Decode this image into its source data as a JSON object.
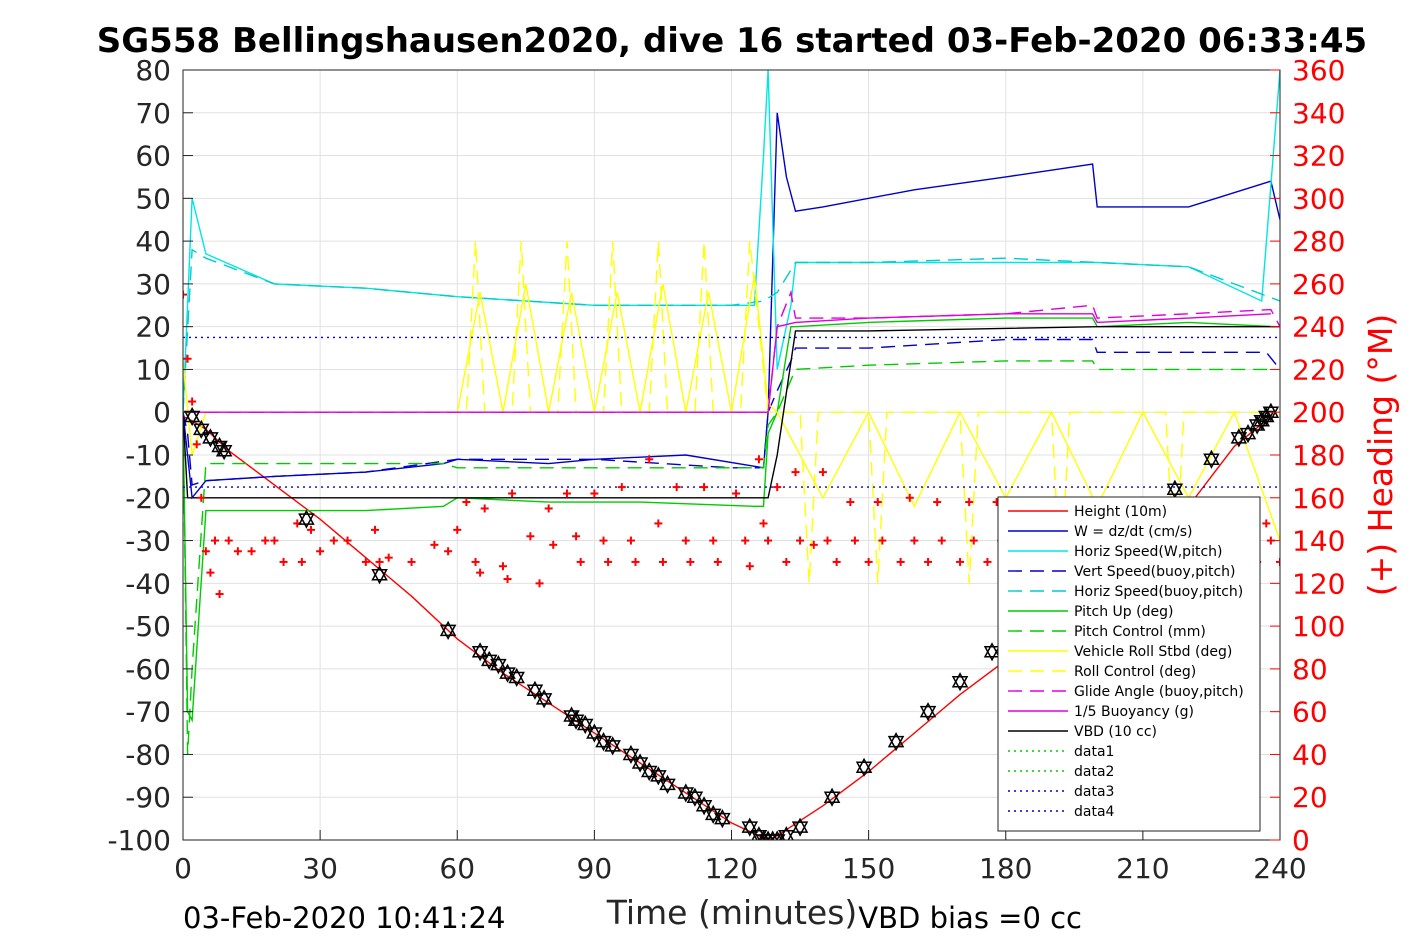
{
  "chart_data": {
    "type": "line",
    "title": "SG558 Bellingshausen2020, dive 16 started 03-Feb-2020 06:33:45",
    "xlabel": "Time (minutes)",
    "ylabel": "",
    "ylabel_right": "(+) Heading (°M)",
    "xlim": [
      0,
      240
    ],
    "ylim": [
      -100,
      80
    ],
    "ylim_right": [
      0,
      360
    ],
    "x_ticks": [
      "0",
      "30",
      "60",
      "90",
      "120",
      "150",
      "180",
      "210",
      "240"
    ],
    "y_ticks": [
      "-100",
      "-90",
      "-80",
      "-70",
      "-60",
      "-50",
      "-40",
      "-30",
      "-20",
      "-10",
      "0",
      "10",
      "20",
      "30",
      "40",
      "50",
      "60",
      "70",
      "80"
    ],
    "y_right_ticks": [
      "0",
      "20",
      "40",
      "60",
      "80",
      "100",
      "120",
      "140",
      "160",
      "180",
      "200",
      "220",
      "240",
      "260",
      "280",
      "300",
      "320",
      "340",
      "360"
    ],
    "grid": true,
    "legend_position": "lower-right",
    "footer_left": "03-Feb-2020 10:41:24",
    "footer_right": "VBD bias =0 cc",
    "series": [
      {
        "name": "Height (10m)",
        "color": "#ff0000",
        "dash": "solid",
        "x": [
          0,
          2,
          5,
          10,
          20,
          30,
          40,
          50,
          60,
          70,
          80,
          90,
          100,
          110,
          120,
          126,
          128,
          130,
          140,
          150,
          160,
          170,
          180,
          190,
          200,
          210,
          220,
          230,
          238
        ],
        "y": [
          -1,
          -2,
          -4,
          -9,
          -17,
          -25,
          -34,
          -43,
          -53,
          -61,
          -68,
          -75,
          -82,
          -89,
          -96,
          -99,
          -100,
          -99,
          -92,
          -84,
          -75,
          -66,
          -58,
          -49,
          -40,
          -31,
          -22,
          -8,
          -1
        ]
      },
      {
        "name": "W = dz/dt (cm/s)",
        "color": "#0000cc",
        "dash": "solid",
        "x": [
          0,
          2,
          5,
          20,
          40,
          57,
          60,
          80,
          90,
          110,
          127,
          128,
          130,
          132,
          134,
          140,
          160,
          180,
          199,
          200,
          220,
          238,
          240
        ],
        "y": [
          0,
          -20,
          -16,
          -15,
          -14,
          -12,
          -11,
          -12,
          -11,
          -10,
          -13,
          0,
          70,
          55,
          47,
          48,
          52,
          55,
          58,
          48,
          48,
          54,
          45
        ]
      },
      {
        "name": "Horiz Speed(W,pitch)",
        "color": "#00e5e5",
        "dash": "solid",
        "x": [
          0,
          2,
          5,
          20,
          40,
          60,
          90,
          125,
          127,
          128,
          130,
          133,
          134,
          150,
          180,
          200,
          220,
          236,
          240
        ],
        "y": [
          0,
          50,
          37,
          30,
          29,
          27,
          25,
          25,
          60,
          80,
          10,
          25,
          35,
          35,
          35,
          35,
          34,
          26,
          80
        ]
      },
      {
        "name": "Vert Speed(buoy,pitch)",
        "color": "#0000cc",
        "dash": "dashed",
        "x": [
          0,
          1,
          2,
          5,
          20,
          40,
          60,
          90,
          120,
          127,
          128,
          130,
          133,
          134,
          150,
          180,
          199,
          200,
          220,
          237,
          240
        ],
        "y": [
          0,
          -5,
          -17,
          -16,
          -15,
          -14,
          -11,
          -11,
          -13,
          -13,
          0,
          5,
          12,
          15,
          15,
          17,
          17,
          14,
          14,
          14,
          10
        ]
      },
      {
        "name": "Horiz Speed(buoy,pitch)",
        "color": "#00cccc",
        "dash": "dashed",
        "x": [
          0,
          2,
          5,
          20,
          40,
          60,
          90,
          120,
          127,
          130,
          134,
          150,
          180,
          200,
          220,
          240
        ],
        "y": [
          0,
          38,
          36,
          30,
          29,
          27,
          25,
          25,
          26,
          28,
          35,
          35,
          36,
          35,
          34,
          26
        ]
      },
      {
        "name": "Pitch Up (deg)",
        "color": "#00cc00",
        "dash": "solid",
        "x": [
          0,
          1,
          2,
          5,
          20,
          40,
          57,
          60,
          80,
          100,
          125,
          127,
          128,
          130,
          133,
          134,
          150,
          180,
          199,
          200,
          220,
          239
        ],
        "y": [
          0,
          -70,
          -72,
          -23,
          -23,
          -23,
          -22,
          -20,
          -21,
          -21,
          -22,
          -22,
          -5,
          0,
          20,
          20,
          21,
          22,
          22,
          20,
          21,
          20
        ]
      },
      {
        "name": "Pitch Control (mm)",
        "color": "#00cc00",
        "dash": "dashed",
        "x": [
          0,
          1,
          2,
          5,
          20,
          40,
          57,
          60,
          100,
          127,
          128,
          130,
          134,
          150,
          180,
          199,
          200,
          220,
          239
        ],
        "y": [
          0,
          -80,
          -60,
          -12,
          -12,
          -12,
          -12,
          -13,
          -13,
          -13,
          -3,
          0,
          10,
          11,
          12,
          12,
          10,
          10,
          10
        ]
      },
      {
        "name": "Vehicle Roll Stbd (deg)",
        "color": "#ffff00",
        "dash": "solid",
        "x": [
          0,
          2,
          5,
          60,
          65,
          70,
          75,
          80,
          85,
          90,
          95,
          100,
          105,
          110,
          115,
          120,
          125,
          128,
          130,
          140,
          150,
          160,
          170,
          180,
          190,
          200,
          210,
          220,
          230,
          240
        ],
        "y": [
          12,
          -10,
          0,
          0,
          28,
          0,
          30,
          0,
          28,
          0,
          28,
          0,
          30,
          0,
          28,
          0,
          32,
          2,
          0,
          -20,
          0,
          -22,
          0,
          -20,
          0,
          -22,
          0,
          -20,
          0,
          -30
        ]
      },
      {
        "name": "Roll Control (deg)",
        "color": "#ffff00",
        "dash": "dashed",
        "x": [
          0,
          5,
          62,
          64,
          66,
          72,
          74,
          76,
          82,
          84,
          86,
          92,
          94,
          96,
          102,
          104,
          106,
          112,
          114,
          116,
          122,
          124,
          128,
          135,
          137,
          139,
          150,
          152,
          154,
          170,
          172,
          174,
          190,
          192,
          194,
          215,
          217,
          219,
          236,
          240
        ],
        "y": [
          0,
          0,
          0,
          40,
          0,
          0,
          40,
          0,
          0,
          40,
          0,
          0,
          40,
          0,
          0,
          40,
          0,
          0,
          40,
          0,
          0,
          40,
          0,
          0,
          -40,
          0,
          0,
          -40,
          0,
          0,
          -40,
          0,
          0,
          -40,
          0,
          0,
          -40,
          0,
          0,
          0
        ]
      },
      {
        "name": "Glide Angle (buoy,pitch)",
        "color": "#dd00dd",
        "dash": "dashed",
        "x": [
          0,
          5,
          60,
          100,
          127,
          128,
          130,
          133,
          134,
          150,
          180,
          199,
          200,
          220,
          238,
          240
        ],
        "y": [
          0,
          0,
          0,
          0,
          0,
          0,
          20,
          28,
          22,
          22,
          23,
          25,
          22,
          23,
          24,
          20
        ]
      },
      {
        "name": "1/5 Buoyancy (g)",
        "color": "#dd00dd",
        "dash": "solid",
        "x": [
          0,
          5,
          60,
          127,
          128,
          130,
          134,
          150,
          180,
          199,
          200,
          220,
          238
        ],
        "y": [
          0,
          0,
          0,
          0,
          0,
          20,
          21,
          22,
          23,
          23,
          21,
          22,
          23
        ]
      },
      {
        "name": "VBD (10 cc)",
        "color": "#000000",
        "dash": "solid",
        "x": [
          0,
          1,
          2,
          5,
          60,
          127,
          128,
          130,
          134,
          150,
          200,
          240
        ],
        "y": [
          0,
          -20,
          -20,
          -20,
          -20,
          -20,
          -20,
          -10,
          19,
          19,
          20,
          20
        ]
      },
      {
        "name": "data1",
        "color": "#00cc00",
        "dash": "dotted",
        "x": [],
        "y": []
      },
      {
        "name": "data2",
        "color": "#00cc00",
        "dash": "dotted",
        "x": [],
        "y": []
      },
      {
        "name": "data3",
        "color": "#0000cc",
        "dash": "dotted",
        "x": [
          0,
          240
        ],
        "y": [
          17.5,
          17.5
        ]
      },
      {
        "name": "data4",
        "color": "#0000cc",
        "dash": "dotted",
        "x": [
          0,
          240
        ],
        "y": [
          -17.5,
          -17.5
        ]
      }
    ],
    "heading_points": {
      "color": "#ff0000",
      "marker": "+",
      "axis": "right",
      "x": [
        0,
        1,
        2,
        3,
        4,
        5,
        6,
        7,
        8,
        10,
        12,
        15,
        18,
        20,
        22,
        25,
        26,
        28,
        30,
        33,
        36,
        40,
        42,
        43,
        45,
        50,
        55,
        58,
        60,
        62,
        64,
        65,
        66,
        70,
        71,
        72,
        76,
        78,
        80,
        81,
        84,
        86,
        87,
        90,
        92,
        93,
        96,
        98,
        99,
        102,
        104,
        105,
        108,
        110,
        111,
        114,
        116,
        117,
        121,
        123,
        124,
        126,
        127,
        128,
        130,
        132,
        134,
        135,
        138,
        140,
        141,
        143,
        146,
        147,
        150,
        152,
        153,
        157,
        159,
        160,
        163,
        165,
        166,
        170,
        172,
        173,
        176,
        178,
        179,
        183,
        185,
        186,
        190,
        192,
        193,
        196,
        198,
        199,
        202,
        204,
        205,
        209,
        211,
        212,
        215,
        217,
        218,
        222,
        224,
        225,
        229,
        231,
        232,
        235,
        237,
        238,
        240
      ],
      "y": [
        255,
        225,
        205,
        185,
        160,
        135,
        125,
        140,
        115,
        140,
        135,
        135,
        140,
        140,
        130,
        148,
        130,
        145,
        135,
        140,
        140,
        130,
        145,
        130,
        132,
        130,
        138,
        135,
        145,
        158,
        130,
        125,
        155,
        128,
        122,
        162,
        142,
        120,
        155,
        138,
        162,
        142,
        130,
        162,
        140,
        130,
        165,
        140,
        130,
        178,
        148,
        130,
        165,
        140,
        130,
        165,
        140,
        130,
        162,
        140,
        128,
        178,
        148,
        140,
        165,
        130,
        172,
        140,
        138,
        172,
        140,
        130,
        158,
        140,
        130,
        158,
        140,
        130,
        160,
        140,
        130,
        158,
        140,
        130,
        158,
        140,
        130,
        158,
        140,
        130,
        158,
        140,
        130,
        158,
        140,
        130,
        158,
        140,
        130,
        158,
        140,
        130,
        158,
        140,
        130,
        158,
        140,
        130,
        158,
        140,
        130,
        158,
        140,
        130,
        148,
        140,
        130
      ]
    },
    "gps_points": {
      "marker": "triangle",
      "x": [
        2,
        4,
        6,
        8,
        9,
        27,
        43,
        58,
        65,
        67,
        69,
        71,
        73,
        77,
        79,
        85,
        86,
        88,
        90,
        92,
        94,
        98,
        100,
        102,
        104,
        106,
        110,
        112,
        114,
        116,
        118,
        124,
        126,
        127,
        128,
        129,
        130,
        132,
        135,
        142,
        149,
        156,
        163,
        170,
        177,
        217,
        225,
        231,
        233,
        235,
        236,
        237,
        238
      ],
      "y": [
        -1,
        -4,
        -6,
        -8,
        -9,
        -25,
        -38,
        -51,
        -56,
        -58,
        -59,
        -61,
        -62,
        -65,
        -67,
        -71,
        -72,
        -73,
        -75,
        -77,
        -78,
        -80,
        -82,
        -84,
        -85,
        -87,
        -89,
        -90,
        -92,
        -94,
        -95,
        -97,
        -99,
        -100,
        -100,
        -100,
        -100,
        -99,
        -97,
        -90,
        -83,
        -77,
        -70,
        -63,
        -56,
        -18,
        -11,
        -6,
        -5,
        -3,
        -2,
        -1,
        0
      ]
    }
  }
}
